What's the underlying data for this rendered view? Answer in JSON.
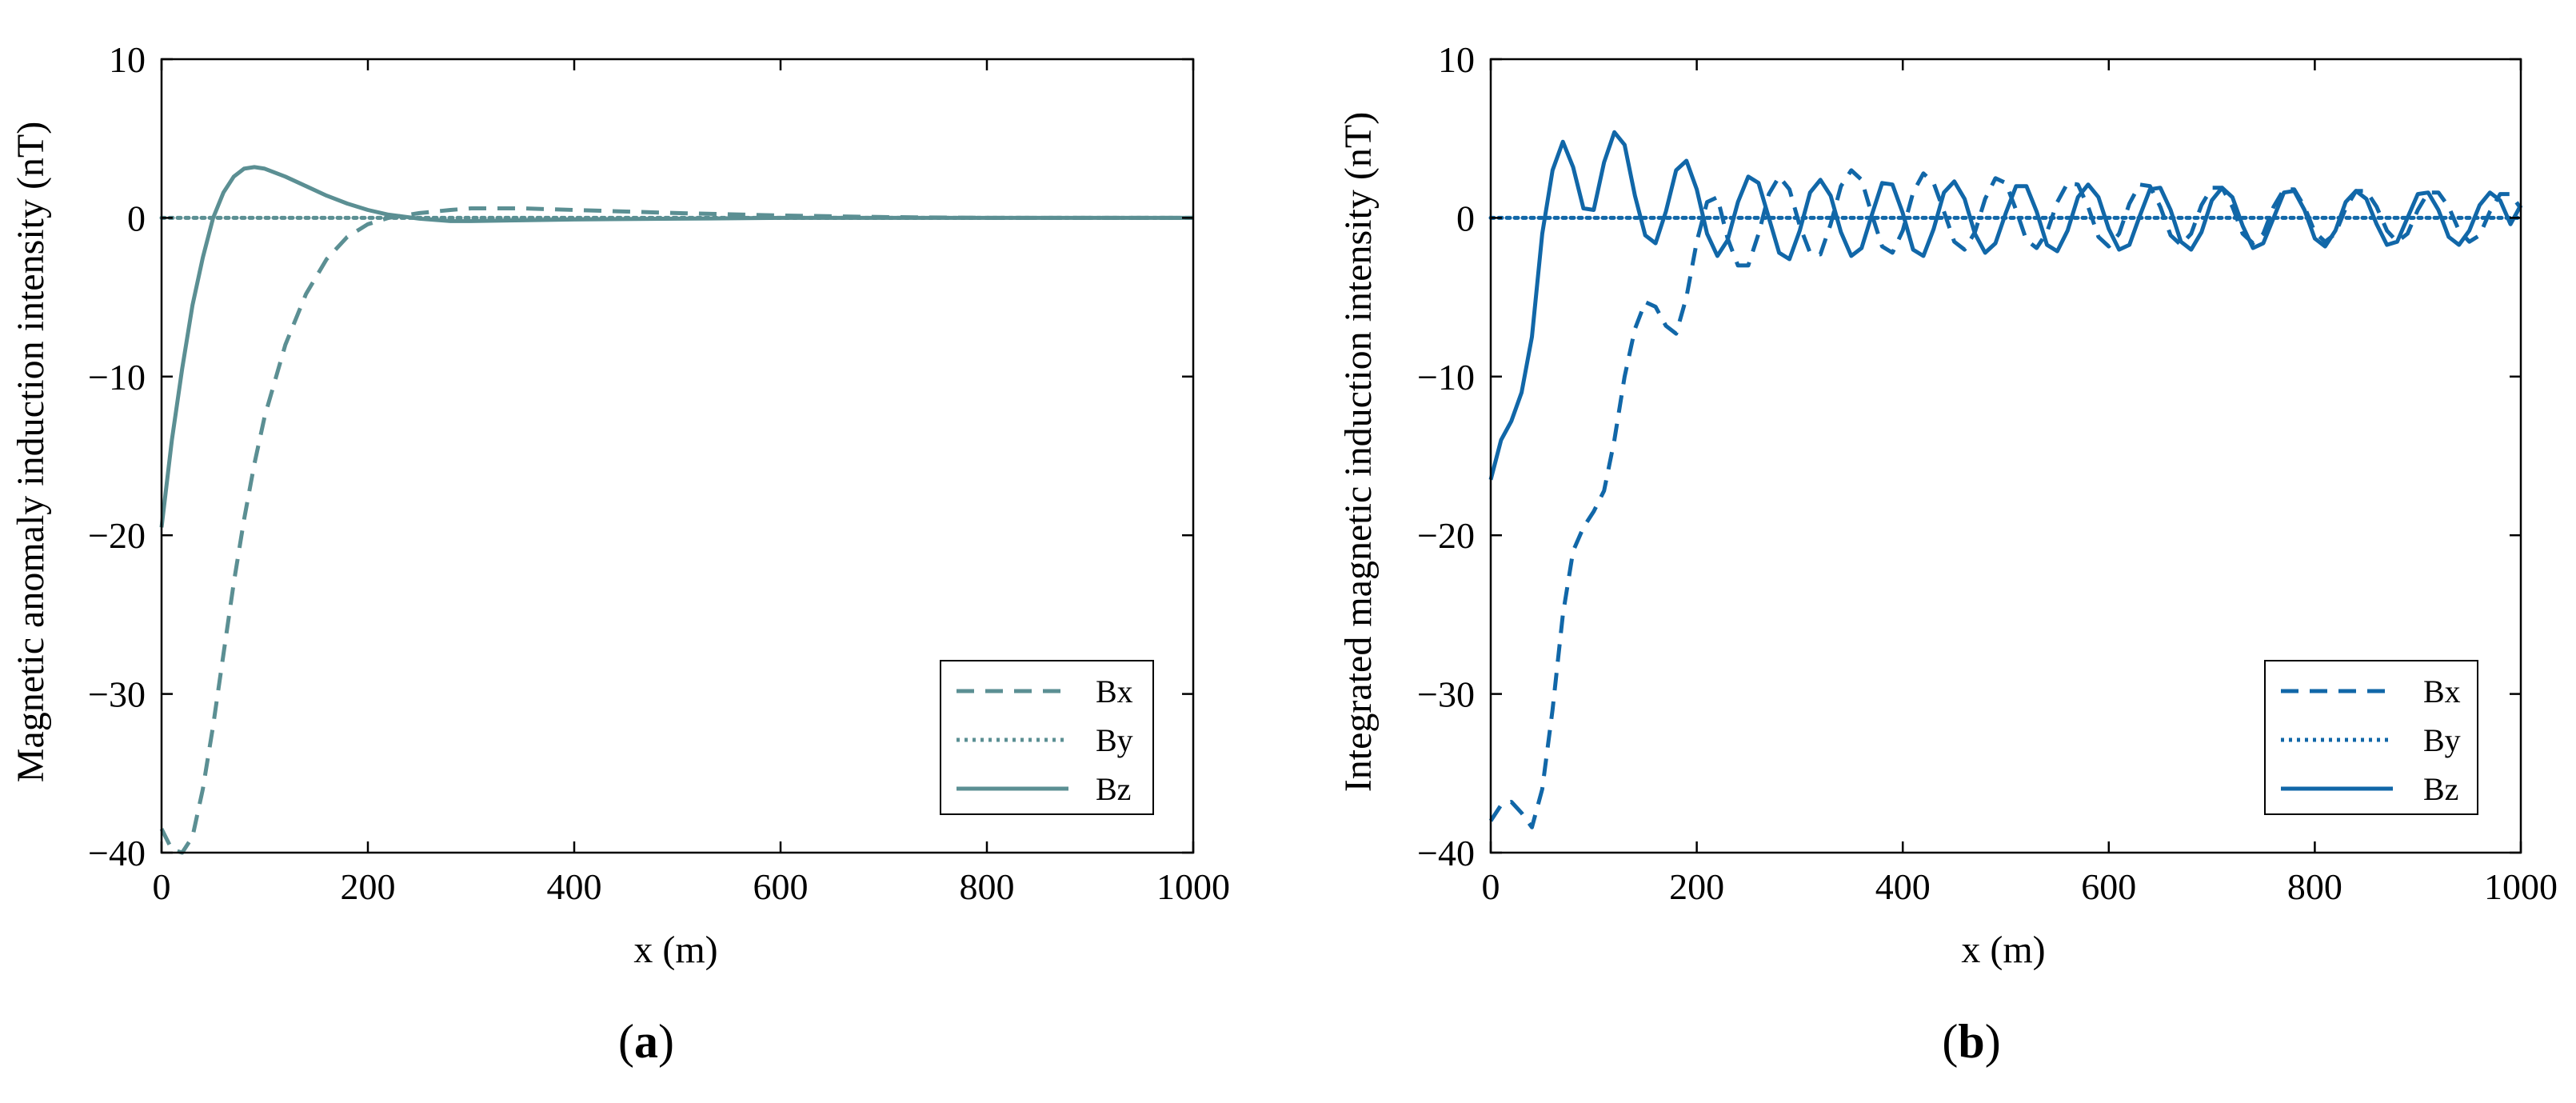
{
  "colors": {
    "panel_a": "#5b8f93",
    "panel_b": "#1167a8",
    "axis": "#000000"
  },
  "chart_data": [
    {
      "type": "line",
      "panel_label_open": "(",
      "panel_label_letter": "a",
      "panel_label_close": ")",
      "xlabel": "x (m)",
      "ylabel": "Magnetic anomaly induction intensity (nT)",
      "xlim": [
        0,
        1000
      ],
      "ylim": [
        -40,
        10
      ],
      "xticks": [
        0,
        200,
        400,
        600,
        800,
        1000
      ],
      "xtick_labels": [
        "0",
        "200",
        "400",
        "600",
        "800",
        "1000"
      ],
      "yticks": [
        10,
        0,
        -10,
        -20,
        -30,
        -40
      ],
      "ytick_labels": [
        "10",
        "0",
        "−10",
        "−20",
        "−30",
        "−40"
      ],
      "legend_position": "bottom-right",
      "series": [
        {
          "name": "Bx",
          "style": "dashed",
          "x": [
            0,
            10,
            20,
            30,
            40,
            50,
            60,
            70,
            80,
            90,
            100,
            120,
            140,
            160,
            180,
            200,
            220,
            250,
            280,
            300,
            350,
            400,
            500,
            600,
            700,
            800,
            900,
            1000
          ],
          "y": [
            -38.5,
            -39.8,
            -40,
            -39,
            -36,
            -32,
            -27.5,
            -23,
            -19,
            -15.5,
            -12.5,
            -8,
            -4.8,
            -2.6,
            -1.2,
            -0.4,
            0,
            0.3,
            0.5,
            0.6,
            0.6,
            0.5,
            0.3,
            0.15,
            0.05,
            0,
            0,
            0
          ]
        },
        {
          "name": "By",
          "style": "dotted",
          "x": [
            0,
            200,
            400,
            600,
            800,
            1000
          ],
          "y": [
            0,
            0,
            0,
            0,
            0,
            0
          ]
        },
        {
          "name": "Bz",
          "style": "solid",
          "x": [
            0,
            10,
            20,
            30,
            40,
            50,
            60,
            70,
            80,
            90,
            100,
            120,
            140,
            160,
            180,
            200,
            220,
            250,
            280,
            300,
            350,
            400,
            500,
            600,
            700,
            800,
            900,
            1000
          ],
          "y": [
            -19.5,
            -14,
            -9.5,
            -5.5,
            -2.5,
            0,
            1.6,
            2.6,
            3.1,
            3.2,
            3.1,
            2.6,
            2.0,
            1.4,
            0.9,
            0.5,
            0.2,
            -0.05,
            -0.2,
            -0.2,
            -0.15,
            -0.1,
            -0.05,
            0,
            0,
            0,
            0,
            0
          ]
        }
      ]
    },
    {
      "type": "line",
      "panel_label_open": "(",
      "panel_label_letter": "b",
      "panel_label_close": ")",
      "xlabel": "x (m)",
      "ylabel": "Integrated magnetic induction intensity (nT)",
      "xlim": [
        0,
        1000
      ],
      "ylim": [
        -40,
        10
      ],
      "xticks": [
        0,
        200,
        400,
        600,
        800,
        1000
      ],
      "xtick_labels": [
        "0",
        "200",
        "400",
        "600",
        "800",
        "1000"
      ],
      "yticks": [
        10,
        0,
        -10,
        -20,
        -30,
        -40
      ],
      "ytick_labels": [
        "10",
        "0",
        "−10",
        "−20",
        "−30",
        "−40"
      ],
      "legend_position": "bottom-right",
      "series": [
        {
          "name": "Bx",
          "style": "dashed",
          "x": [
            0,
            10,
            20,
            30,
            40,
            50,
            60,
            70,
            80,
            90,
            100,
            110,
            120,
            130,
            140,
            150,
            160,
            170,
            180,
            190,
            200,
            210,
            220,
            230,
            240,
            250,
            260,
            270,
            280,
            290,
            300,
            310,
            320,
            330,
            340,
            350,
            360,
            370,
            380,
            390,
            400,
            410,
            420,
            430,
            440,
            450,
            460,
            470,
            480,
            490,
            500,
            510,
            520,
            530,
            540,
            550,
            560,
            570,
            580,
            590,
            600,
            610,
            620,
            630,
            640,
            650,
            660,
            670,
            680,
            690,
            700,
            710,
            720,
            730,
            740,
            750,
            760,
            770,
            780,
            790,
            800,
            810,
            820,
            830,
            840,
            850,
            860,
            870,
            880,
            890,
            900,
            910,
            920,
            930,
            940,
            950,
            960,
            970,
            980,
            990,
            1000
          ],
          "y": [
            -38,
            -37,
            -36.8,
            -37.5,
            -38.4,
            -36,
            -31,
            -25,
            -21,
            -19.5,
            -18.5,
            -17.2,
            -14,
            -10,
            -7,
            -5.3,
            -5.6,
            -6.8,
            -7.3,
            -5,
            -1.5,
            1,
            1.3,
            -1.3,
            -3,
            -3,
            -1,
            1.5,
            2.6,
            1.8,
            -0.5,
            -2.2,
            -2.3,
            -0.4,
            2,
            3,
            2.4,
            0.2,
            -1.8,
            -2.2,
            -0.8,
            1.6,
            2.8,
            2.2,
            0.4,
            -1.5,
            -2,
            -0.9,
            1.2,
            2.5,
            2.2,
            0.5,
            -1.4,
            -1.9,
            -0.9,
            1,
            2.2,
            2.1,
            0.7,
            -1.2,
            -1.8,
            -1,
            0.9,
            2.1,
            2.0,
            0.7,
            -1.1,
            -1.7,
            -1,
            0.8,
            1.9,
            1.9,
            0.7,
            -1,
            -1.6,
            -1,
            0.7,
            1.8,
            1.8,
            0.7,
            -0.9,
            -1.5,
            -1,
            0.6,
            1.7,
            1.7,
            0.7,
            -0.8,
            -1.5,
            -1,
            0.5,
            1.6,
            1.6,
            0.7,
            -0.8,
            -1.5,
            -1.1,
            0.4,
            1.5,
            1.5,
            0.6
          ]
        },
        {
          "name": "By",
          "style": "dotted",
          "x": [
            0,
            200,
            400,
            600,
            800,
            1000
          ],
          "y": [
            0,
            0,
            0,
            0,
            0,
            0
          ]
        },
        {
          "name": "Bz",
          "style": "solid",
          "x": [
            0,
            10,
            20,
            30,
            40,
            50,
            60,
            70,
            80,
            90,
            100,
            110,
            120,
            130,
            140,
            150,
            160,
            170,
            180,
            190,
            200,
            210,
            220,
            230,
            240,
            250,
            260,
            270,
            280,
            290,
            300,
            310,
            320,
            330,
            340,
            350,
            360,
            370,
            380,
            390,
            400,
            410,
            420,
            430,
            440,
            450,
            460,
            470,
            480,
            490,
            500,
            510,
            520,
            530,
            540,
            550,
            560,
            570,
            580,
            590,
            600,
            610,
            620,
            630,
            640,
            650,
            660,
            670,
            680,
            690,
            700,
            710,
            720,
            730,
            740,
            750,
            760,
            770,
            780,
            790,
            800,
            810,
            820,
            830,
            840,
            850,
            860,
            870,
            880,
            890,
            900,
            910,
            920,
            930,
            940,
            950,
            960,
            970,
            980,
            990,
            1000
          ],
          "y": [
            -16.5,
            -14,
            -12.8,
            -11,
            -7.5,
            -1,
            3,
            4.8,
            3.2,
            0.6,
            0.5,
            3.5,
            5.4,
            4.6,
            1.4,
            -1.1,
            -1.6,
            0.4,
            3,
            3.6,
            1.8,
            -1,
            -2.4,
            -1.4,
            1,
            2.6,
            2.2,
            0,
            -2.2,
            -2.6,
            -0.8,
            1.6,
            2.4,
            1.4,
            -0.9,
            -2.4,
            -1.9,
            0.2,
            2.2,
            2.1,
            0.3,
            -2,
            -2.4,
            -0.7,
            1.6,
            2.3,
            1.2,
            -1,
            -2.2,
            -1.6,
            0.3,
            2,
            2,
            0.4,
            -1.7,
            -2.1,
            -0.8,
            1.3,
            2.1,
            1.3,
            -0.7,
            -2,
            -1.7,
            0.1,
            1.8,
            1.9,
            0.5,
            -1.5,
            -2,
            -0.9,
            1.1,
            1.9,
            1.3,
            -0.5,
            -1.9,
            -1.6,
            0,
            1.6,
            1.7,
            0.5,
            -1.3,
            -1.8,
            -0.8,
            1,
            1.7,
            1.2,
            -0.4,
            -1.7,
            -1.5,
            0,
            1.5,
            1.6,
            0.5,
            -1.2,
            -1.7,
            -0.8,
            0.8,
            1.6,
            1.1,
            -0.4,
            0.8
          ]
        }
      ]
    }
  ]
}
